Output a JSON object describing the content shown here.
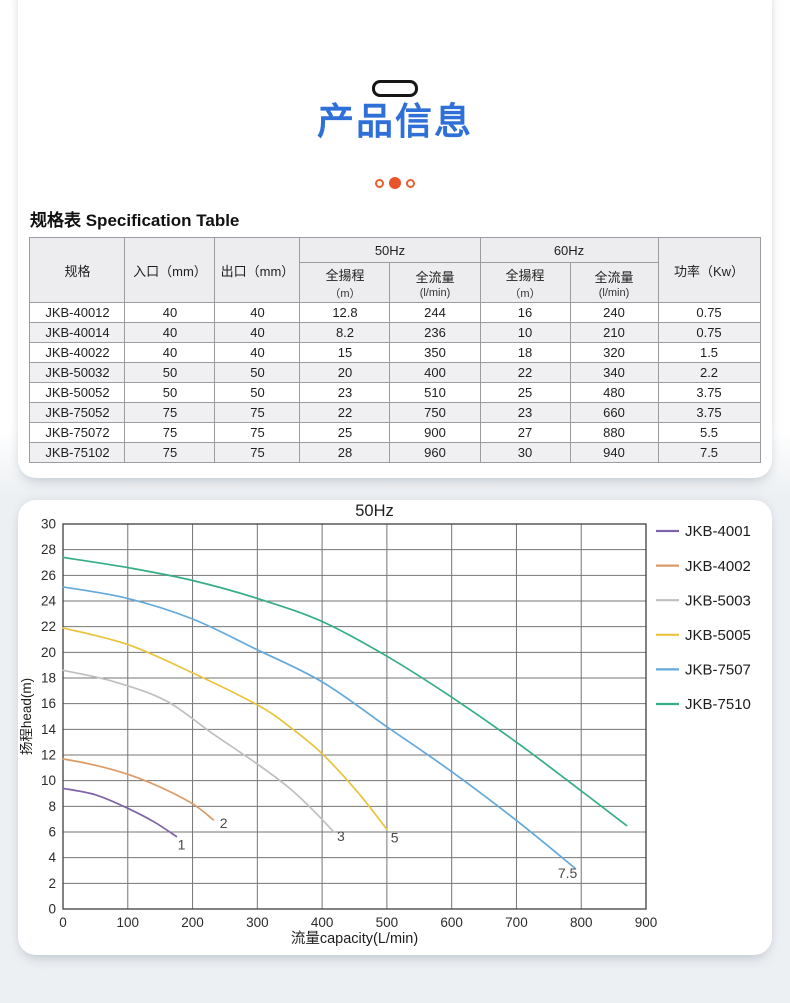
{
  "hero": {
    "title": "产品信息",
    "accent_blue": "#2F6FD8",
    "dot_color": "#E8552B"
  },
  "spec": {
    "heading": "规格表 Specification Table",
    "table": {
      "headers": {
        "spec": "规格",
        "inlet": "入口（mm）",
        "outlet": "出口（mm）",
        "hz50": "50Hz",
        "hz60": "60Hz",
        "head_l1": "全揚程",
        "head_l2": "（m）",
        "flow_l1": "全流量",
        "flow_l2": "(l/min)",
        "power": "功率（Kw）"
      },
      "rows": [
        [
          "JKB-40012",
          "40",
          "40",
          "12.8",
          "244",
          "16",
          "240",
          "0.75"
        ],
        [
          "JKB-40014",
          "40",
          "40",
          "8.2",
          "236",
          "10",
          "210",
          "0.75"
        ],
        [
          "JKB-40022",
          "40",
          "40",
          "15",
          "350",
          "18",
          "320",
          "1.5"
        ],
        [
          "JKB-50032",
          "50",
          "50",
          "20",
          "400",
          "22",
          "340",
          "2.2"
        ],
        [
          "JKB-50052",
          "50",
          "50",
          "23",
          "510",
          "25",
          "480",
          "3.75"
        ],
        [
          "JKB-75052",
          "75",
          "75",
          "22",
          "750",
          "23",
          "660",
          "3.75"
        ],
        [
          "JKB-75072",
          "75",
          "75",
          "25",
          "900",
          "27",
          "880",
          "5.5"
        ],
        [
          "JKB-75102",
          "75",
          "75",
          "28",
          "960",
          "30",
          "940",
          "7.5"
        ]
      ]
    }
  },
  "chart_data": {
    "type": "line",
    "title": "50Hz",
    "xlabel": "流量capacity(L/min)",
    "ylabel": "扬程head(m)",
    "xlim": [
      0,
      900
    ],
    "ylim": [
      0,
      30
    ],
    "xticks": [
      0,
      100,
      200,
      300,
      400,
      500,
      600,
      700,
      800,
      900
    ],
    "yticks": [
      0,
      2,
      4,
      6,
      8,
      10,
      12,
      14,
      16,
      18,
      20,
      22,
      24,
      26,
      28,
      30
    ],
    "grid": true,
    "legend_position": "right",
    "series": [
      {
        "name": "JKB-4001",
        "color": "#7E63A8",
        "end_label": {
          "text": "1",
          "x": 183,
          "y": 4.65
        },
        "points": [
          [
            0,
            9.4
          ],
          [
            50,
            8.9
          ],
          [
            100,
            7.85
          ],
          [
            140,
            6.8
          ],
          [
            175,
            5.65
          ]
        ]
      },
      {
        "name": "JKB-4002",
        "color": "#DC9A66",
        "end_label": {
          "text": "2",
          "x": 248,
          "y": 6.3
        },
        "points": [
          [
            0,
            11.7
          ],
          [
            50,
            11.2
          ],
          [
            100,
            10.5
          ],
          [
            150,
            9.5
          ],
          [
            200,
            8.2
          ],
          [
            232,
            6.95
          ]
        ]
      },
      {
        "name": "JKB-5003",
        "color": "#BFBFBF",
        "end_label": {
          "text": "3",
          "x": 429,
          "y": 5.3
        },
        "points": [
          [
            0,
            18.6
          ],
          [
            80,
            17.7
          ],
          [
            160,
            16.2
          ],
          [
            230,
            13.7
          ],
          [
            300,
            11.3
          ],
          [
            350,
            9.4
          ],
          [
            390,
            7.5
          ],
          [
            418,
            6.0
          ]
        ]
      },
      {
        "name": "JKB-5005",
        "color": "#E9C43C",
        "end_label": {
          "text": "5",
          "x": 512,
          "y": 5.2
        },
        "points": [
          [
            0,
            21.9
          ],
          [
            100,
            20.6
          ],
          [
            200,
            18.4
          ],
          [
            300,
            15.9
          ],
          [
            350,
            14.2
          ],
          [
            400,
            12.1
          ],
          [
            455,
            9.1
          ],
          [
            500,
            6.2
          ]
        ]
      },
      {
        "name": "JKB-7507",
        "color": "#64A9DB",
        "end_label": {
          "text": "7.5",
          "x": 779,
          "y": 2.4
        },
        "points": [
          [
            0,
            25.1
          ],
          [
            100,
            24.2
          ],
          [
            200,
            22.6
          ],
          [
            300,
            20.2
          ],
          [
            400,
            17.7
          ],
          [
            500,
            14.2
          ],
          [
            600,
            10.7
          ],
          [
            700,
            6.9
          ],
          [
            790,
            3.2
          ]
        ]
      },
      {
        "name": "JKB-7510",
        "color": "#35AE85",
        "end_label": null,
        "points": [
          [
            0,
            27.4
          ],
          [
            100,
            26.6
          ],
          [
            200,
            25.6
          ],
          [
            300,
            24.2
          ],
          [
            400,
            22.4
          ],
          [
            500,
            19.7
          ],
          [
            600,
            16.5
          ],
          [
            700,
            13.0
          ],
          [
            800,
            9.2
          ],
          [
            870,
            6.5
          ]
        ]
      }
    ]
  }
}
